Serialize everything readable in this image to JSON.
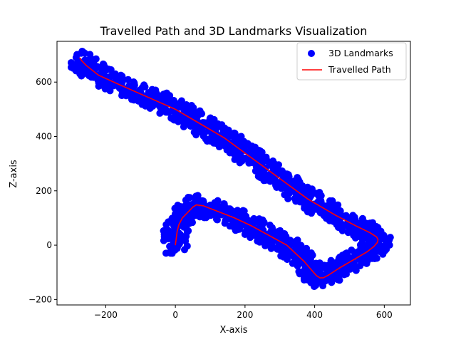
{
  "chart_data": {
    "type": "scatter",
    "title": "Travelled Path and 3D Landmarks Visualization",
    "xlabel": "X-axis",
    "ylabel": "Z-axis",
    "xlim": [
      -340,
      675
    ],
    "ylim": [
      -220,
      750
    ],
    "xticks": [
      -200,
      0,
      200,
      400,
      600
    ],
    "yticks": [
      -200,
      0,
      200,
      400,
      600
    ],
    "xtick_labels": [
      "−200",
      "0",
      "200",
      "400",
      "600"
    ],
    "ytick_labels": [
      "−200",
      "0",
      "200",
      "400",
      "600"
    ],
    "legend_position": "top-right",
    "series": [
      {
        "name": "3D Landmarks",
        "kind": "scatter",
        "color": "#0000ff",
        "band_halfwidth": 40,
        "point_spacing": 6,
        "follows": "Travelled Path"
      },
      {
        "name": "Travelled Path",
        "kind": "line",
        "color": "#ff0000",
        "x": [
          0,
          2,
          5,
          10,
          20,
          35,
          50,
          60,
          80,
          120,
          170,
          220,
          270,
          320,
          345,
          370,
          390,
          405,
          415,
          425,
          440,
          470,
          510,
          550,
          570,
          580,
          582,
          578,
          560,
          520,
          460,
          380,
          300,
          220,
          140,
          60,
          0,
          -80,
          -160,
          -220,
          -255,
          -270,
          -275
        ],
        "y": [
          0,
          20,
          50,
          75,
          100,
          120,
          140,
          148,
          145,
          125,
          100,
          70,
          35,
          0,
          -30,
          -60,
          -90,
          -112,
          -120,
          -120,
          -110,
          -85,
          -55,
          -25,
          -5,
          10,
          20,
          30,
          45,
          70,
          110,
          170,
          245,
          320,
          395,
          455,
          500,
          545,
          590,
          625,
          660,
          680,
          690
        ]
      }
    ]
  }
}
